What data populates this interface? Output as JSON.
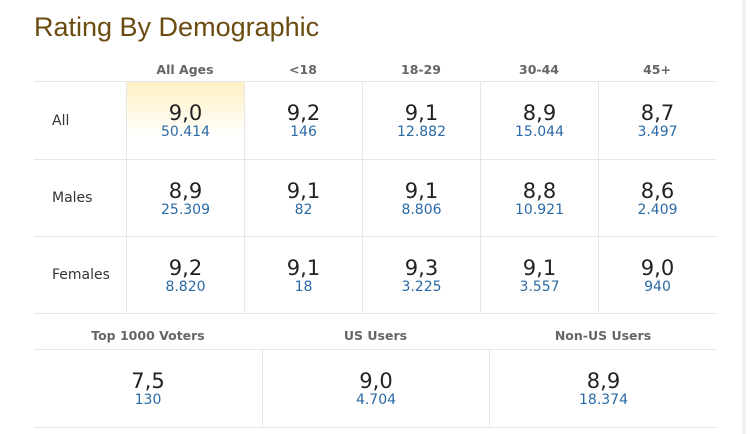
{
  "title": "Rating By Demographic",
  "age_headers": [
    "All Ages",
    "<18",
    "18-29",
    "30-44",
    "45+"
  ],
  "rows": [
    {
      "label": "All",
      "cells": [
        {
          "rating": "9,0",
          "votes": "50.414"
        },
        {
          "rating": "9,2",
          "votes": "146"
        },
        {
          "rating": "9,1",
          "votes": "12.882"
        },
        {
          "rating": "8,9",
          "votes": "15.044"
        },
        {
          "rating": "8,7",
          "votes": "3.497"
        }
      ]
    },
    {
      "label": "Males",
      "cells": [
        {
          "rating": "8,9",
          "votes": "25.309"
        },
        {
          "rating": "9,1",
          "votes": "82"
        },
        {
          "rating": "9,1",
          "votes": "8.806"
        },
        {
          "rating": "8,8",
          "votes": "10.921"
        },
        {
          "rating": "8,6",
          "votes": "2.409"
        }
      ]
    },
    {
      "label": "Females",
      "cells": [
        {
          "rating": "9,2",
          "votes": "8.820"
        },
        {
          "rating": "9,1",
          "votes": "18"
        },
        {
          "rating": "9,3",
          "votes": "3.225"
        },
        {
          "rating": "9,1",
          "votes": "3.557"
        },
        {
          "rating": "9,0",
          "votes": "940"
        }
      ]
    }
  ],
  "groups": [
    {
      "label": "Top 1000 Voters",
      "rating": "7,5",
      "votes": "130"
    },
    {
      "label": "US Users",
      "rating": "9,0",
      "votes": "4.704"
    },
    {
      "label": "Non-US Users",
      "rating": "8,9",
      "votes": "18.374"
    }
  ],
  "colors": {
    "title": "#6b4c10",
    "votes_link": "#2b6aa6",
    "highlight": "#fff0c4",
    "border": "#e6e6e6"
  }
}
